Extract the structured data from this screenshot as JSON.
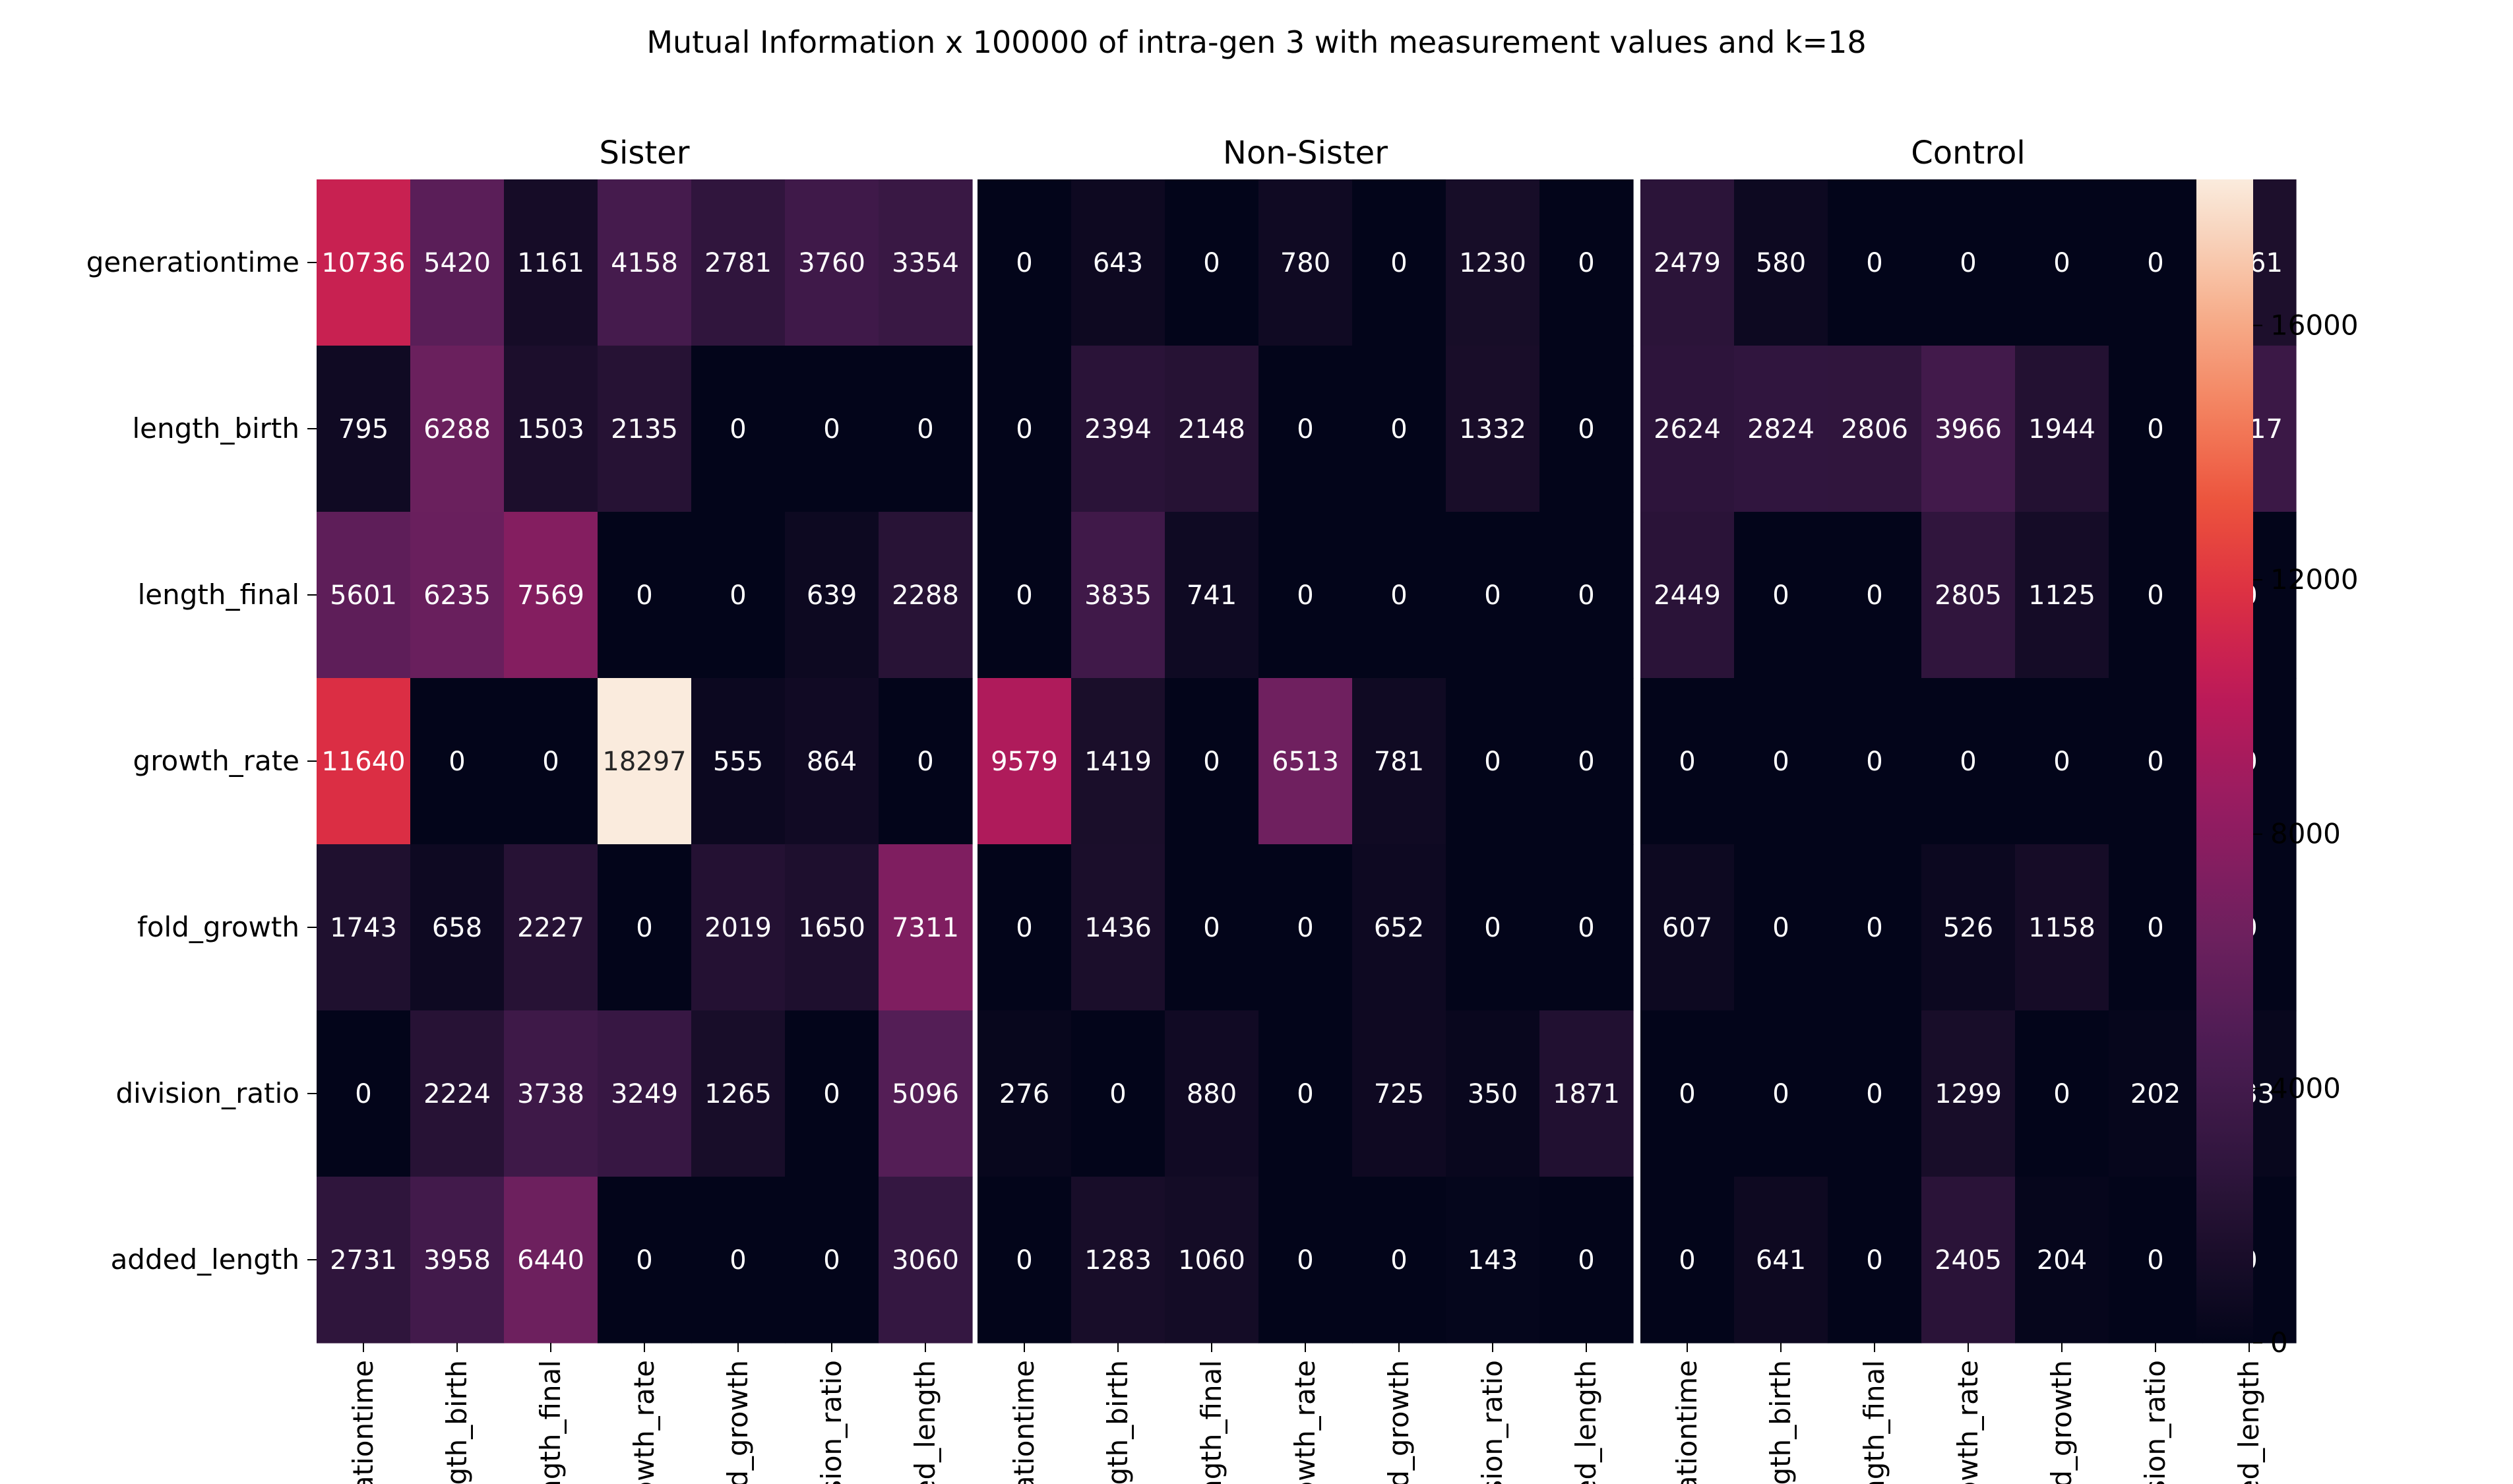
{
  "chart_data": {
    "type": "heatmap",
    "title": "Mutual Information x 100000 of intra-gen 3 with measurement values and k=18",
    "rows": [
      "generationtime",
      "length_birth",
      "length_final",
      "growth_rate",
      "fold_growth",
      "division_ratio",
      "added_length"
    ],
    "column_tick_labels": [
      "rationtime",
      "ngth_birth",
      "ength_final",
      "rowth_rate",
      "old_growth",
      "ision_ratio",
      "ded_length"
    ],
    "panels": [
      {
        "name": "Sister",
        "values": [
          [
            10736,
            5420,
            1161,
            4158,
            2781,
            3760,
            3354
          ],
          [
            795,
            6288,
            1503,
            2135,
            0,
            0,
            0
          ],
          [
            5601,
            6235,
            7569,
            0,
            0,
            639,
            2288
          ],
          [
            11640,
            0,
            0,
            18297,
            555,
            864,
            0
          ],
          [
            1743,
            658,
            2227,
            0,
            2019,
            1650,
            7311
          ],
          [
            0,
            2224,
            3738,
            3249,
            1265,
            0,
            5096
          ],
          [
            2731,
            3958,
            6440,
            0,
            0,
            0,
            3060
          ]
        ]
      },
      {
        "name": "Non-Sister",
        "values": [
          [
            0,
            643,
            0,
            780,
            0,
            1230,
            0
          ],
          [
            0,
            2394,
            2148,
            0,
            0,
            1332,
            0
          ],
          [
            0,
            3835,
            741,
            0,
            0,
            0,
            0
          ],
          [
            9579,
            1419,
            0,
            6513,
            781,
            0,
            0
          ],
          [
            0,
            1436,
            0,
            0,
            652,
            0,
            0
          ],
          [
            276,
            0,
            880,
            0,
            725,
            350,
            1871
          ],
          [
            0,
            1283,
            1060,
            0,
            0,
            143,
            0
          ]
        ]
      },
      {
        "name": "Control",
        "values": [
          [
            2479,
            580,
            0,
            0,
            0,
            0,
            1561
          ],
          [
            2624,
            2824,
            2806,
            3966,
            1944,
            0,
            3517
          ],
          [
            2449,
            0,
            0,
            2805,
            1125,
            0,
            0
          ],
          [
            0,
            0,
            0,
            0,
            0,
            0,
            0
          ],
          [
            607,
            0,
            0,
            526,
            1158,
            0,
            0
          ],
          [
            0,
            0,
            0,
            1299,
            0,
            202,
            283
          ],
          [
            0,
            641,
            0,
            2405,
            204,
            0,
            0
          ]
        ]
      }
    ],
    "colorbar": {
      "min": 0,
      "max": 18297,
      "ticks": [
        0,
        4000,
        8000,
        12000,
        16000
      ],
      "colormap": "rocket"
    }
  }
}
